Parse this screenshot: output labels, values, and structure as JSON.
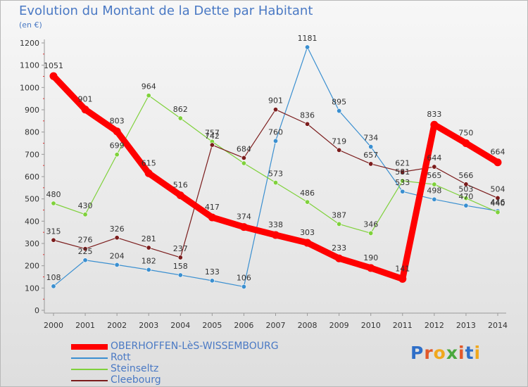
{
  "header": {
    "title": "Evolution du Montant de la Dette par Habitant",
    "unit": "(en €)"
  },
  "logo": {
    "text": "Proxiti",
    "colors": [
      "#2f6fc8",
      "#e2582a",
      "#f0a81e",
      "#4aa83e",
      "#e2582a",
      "#2f6fc8",
      "#f0a81e"
    ]
  },
  "chart_data": {
    "type": "line",
    "title": "Evolution du Montant de la Dette par Habitant",
    "subtitle": "(en €)",
    "xlabel": "",
    "ylabel": "",
    "x": [
      "2000",
      "2001",
      "2002",
      "2003",
      "2004",
      "2005",
      "2006",
      "2007",
      "2008",
      "2009",
      "2010",
      "2011",
      "2012",
      "2013",
      "2014"
    ],
    "yticks": [
      "0",
      "100",
      "200",
      "300",
      "400",
      "500",
      "600",
      "700",
      "800",
      "900",
      "1000",
      "1100",
      "1200"
    ],
    "ylim": [
      0,
      1200
    ],
    "grid": false,
    "legend_position": "bottom-left",
    "series": [
      {
        "name": "OBERHOFFEN-LèS-WISSEMBOURG",
        "color": "#ff0000",
        "emphasis": true,
        "values": [
          1051,
          901,
          803,
          615,
          516,
          417,
          374,
          338,
          303,
          233,
          190,
          141,
          833,
          750,
          664
        ],
        "labels": [
          "1051",
          "901",
          "803",
          "615",
          "516",
          "417",
          "374",
          "338",
          "303",
          "233",
          "190",
          "141",
          "833",
          "750",
          "664"
        ]
      },
      {
        "name": "Rott",
        "color": "#3a8fd0",
        "values": [
          108,
          225,
          204,
          182,
          158,
          133,
          106,
          760,
          1181,
          895,
          734,
          533,
          498,
          470,
          446
        ],
        "labels": [
          "108",
          "225",
          "204",
          "182",
          "158",
          "133",
          "106",
          "760",
          "1181",
          "895",
          "734",
          "533",
          "498",
          "470",
          "446"
        ]
      },
      {
        "name": "Steinseltz",
        "color": "#7fd13b",
        "values": [
          480,
          430,
          699,
          964,
          862,
          757,
          660,
          573,
          486,
          387,
          346,
          581,
          565,
          503,
          440
        ],
        "labels": [
          "480",
          "430",
          "699",
          "964",
          "862",
          "757",
          "",
          "573",
          "486",
          "387",
          "346",
          "581",
          "565",
          "503",
          "440"
        ]
      },
      {
        "name": "Cleebourg",
        "color": "#7b1c1c",
        "values": [
          315,
          276,
          326,
          281,
          237,
          742,
          684,
          901,
          836,
          719,
          657,
          621,
          644,
          566,
          504
        ],
        "labels": [
          "315",
          "276",
          "326",
          "281",
          "237",
          "742",
          "684",
          "901",
          "836",
          "719",
          "657",
          "621",
          "644",
          "566",
          "504"
        ]
      }
    ]
  }
}
